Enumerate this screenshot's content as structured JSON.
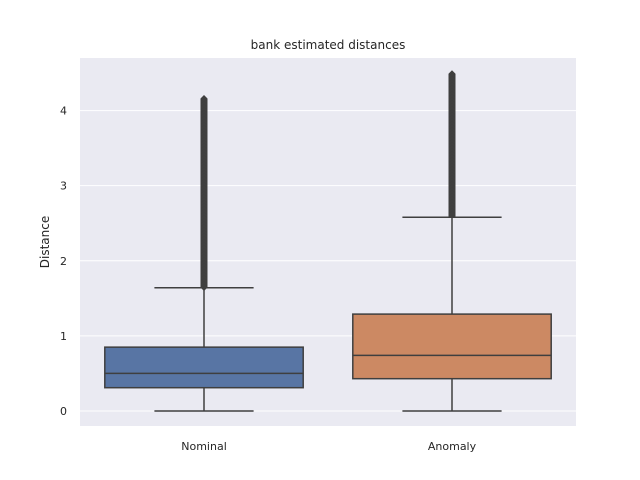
{
  "chart_data": {
    "type": "box",
    "title": "bank estimated distances",
    "xlabel": "",
    "ylabel": "Distance",
    "ylim": [
      -0.2,
      4.7
    ],
    "yticks": [
      0,
      1,
      2,
      3,
      4
    ],
    "yticklabels": [
      "0",
      "1",
      "2",
      "3",
      "4"
    ],
    "grid": true,
    "background": "#eaeaf2",
    "categories": [
      "Nominal",
      "Anomaly"
    ],
    "boxes": [
      {
        "category": "Nominal",
        "color": "#5875a4",
        "whisker_low": 0.0,
        "q1": 0.31,
        "median": 0.5,
        "q3": 0.85,
        "whisker_high": 1.64,
        "outliers_min": 1.64,
        "outliers_max": 4.16
      },
      {
        "category": "Anomaly",
        "color": "#cc8963",
        "whisker_low": 0.0,
        "q1": 0.43,
        "median": 0.74,
        "q3": 1.29,
        "whisker_high": 2.58,
        "outliers_min": 2.58,
        "outliers_max": 4.49
      }
    ]
  }
}
